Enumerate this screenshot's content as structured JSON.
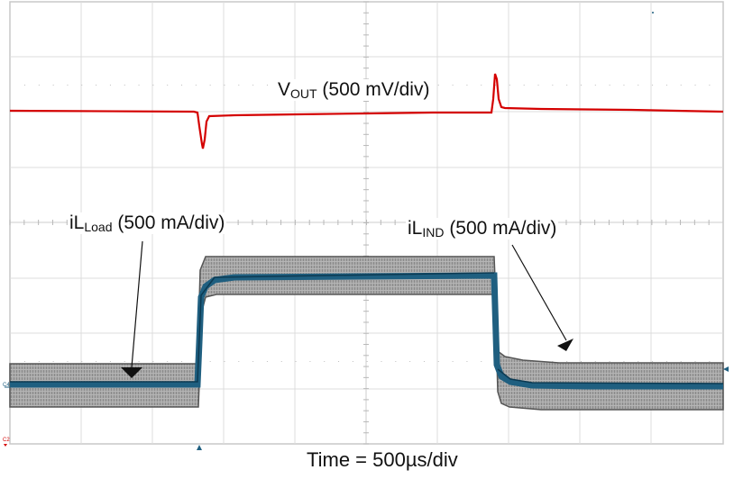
{
  "chart_data": {
    "type": "line",
    "title": "",
    "xlabel": "Time = 500µs/div",
    "ylabel": "",
    "grid": {
      "on": true,
      "x_divisions": 10,
      "y_divisions": 8,
      "minor_ticks_per_div": 5
    },
    "x_unit": "µs",
    "x_per_div": 500,
    "xlim": [
      0,
      5000
    ],
    "series": [
      {
        "name": "VOUT",
        "label_main": "V",
        "label_sub": "OUT",
        "label_scale": " (500 mV/div)",
        "scale": "500 mV/div",
        "color": "#d40000",
        "description": "Output voltage, AC-coupled: undershoot at load step-up, overshoot at load step-down",
        "x_us": [
          0,
          1330,
          1350,
          1380,
          1420,
          1500,
          2000,
          3400,
          3440,
          3470,
          3520,
          3600,
          5000
        ],
        "y_div_from_top": [
          2.0,
          2.0,
          2.5,
          2.7,
          2.1,
          2.08,
          2.06,
          2.02,
          1.3,
          1.55,
          1.97,
          1.98,
          2.0
        ]
      },
      {
        "name": "iL_Load",
        "label_main": "iL",
        "label_sub": "Load",
        "label_scale": " (500 mA/div)",
        "scale": "500 mA/div",
        "color": "#1f5f80",
        "description": "Load current step: low -> high at ~1.33 ms, high -> low at ~3.4 ms",
        "x_us": [
          0,
          1330,
          1350,
          3400,
          3420,
          5000
        ],
        "y_div_from_top": [
          6.95,
          6.95,
          5.0,
          5.0,
          6.95,
          6.95
        ]
      },
      {
        "name": "iL_IND",
        "label_main": "iL",
        "label_sub": "IND",
        "label_scale": " (500 mA/div)",
        "scale": "500 mA/div",
        "color": "#8c8c8c",
        "description": "Inductor current ripple envelope (grey band) around load current",
        "band_half_height_div": 0.38,
        "x_us": [
          0,
          1330,
          1350,
          3400,
          3420,
          5000
        ],
        "y_div_from_top": [
          6.95,
          6.95,
          5.0,
          5.0,
          6.95,
          6.95
        ]
      }
    ],
    "annotations": [
      {
        "text": "VOUT (500 mV/div)",
        "target": "VOUT"
      },
      {
        "text": "iLLoad (500 mA/div)",
        "target": "iL_Load",
        "arrow": true
      },
      {
        "text": "iLIND (500 mA/div)",
        "target": "iL_IND",
        "arrow": true
      }
    ],
    "channel_markers": [
      {
        "text": "C4",
        "color": "#1f5f80",
        "side": "left"
      },
      {
        "text": "C2",
        "color": "#d40000",
        "side": "left"
      }
    ]
  },
  "labels": {
    "vout_main": "V",
    "vout_sub": "OUT",
    "vout_scale": " (500 mV/div)",
    "iload_main": "iL",
    "iload_sub": "Load",
    "iload_scale": " (500 mA/div)",
    "iind_main": "iL",
    "iind_sub": "IND",
    "iind_scale": " (500 mA/div)",
    "time": "Time = 500µs/div",
    "ch4_marker": "C4",
    "ch2_marker": "C2"
  },
  "colors": {
    "vout": "#d40000",
    "current_core": "#1f5f80",
    "ripple_band": "#9a9a9a",
    "ripple_edge": "#5a5a5a",
    "grid": "#d8d8d8"
  }
}
